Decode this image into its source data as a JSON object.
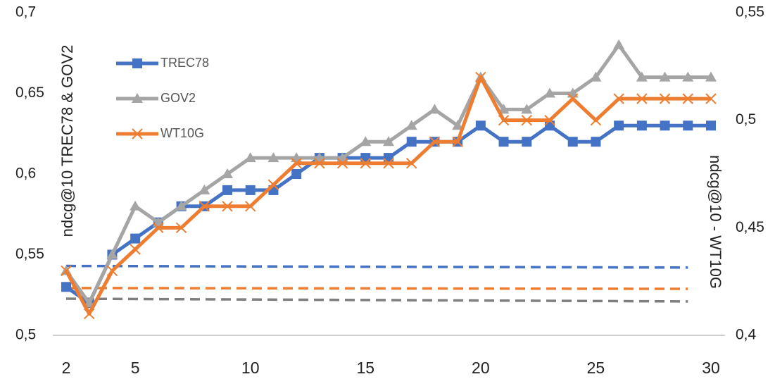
{
  "chart_data": {
    "type": "line",
    "x": [
      2,
      3,
      4,
      5,
      6,
      7,
      8,
      9,
      10,
      11,
      12,
      13,
      14,
      15,
      16,
      17,
      18,
      19,
      20,
      21,
      22,
      23,
      24,
      25,
      26,
      27,
      28,
      29,
      30
    ],
    "xlim": [
      2,
      30
    ],
    "xticks": [
      2,
      5,
      10,
      15,
      20,
      25,
      30
    ],
    "ylim": [
      0.5,
      0.7
    ],
    "yticks": [
      {
        "value": 0.5,
        "label": "0,5"
      },
      {
        "value": 0.55,
        "label": "0,55"
      },
      {
        "value": 0.6,
        "label": "0,6"
      },
      {
        "value": 0.65,
        "label": "0,65"
      },
      {
        "value": 0.7,
        "label": "0,7"
      }
    ],
    "y2lim": [
      0.4,
      0.55
    ],
    "y2ticks": [
      {
        "value": 0.4,
        "label": "0,4"
      },
      {
        "value": 0.45,
        "label": "0,45"
      },
      {
        "value": 0.5,
        "label": "0,5"
      },
      {
        "value": 0.55,
        "label": "0,55"
      }
    ],
    "ylabel": "ndcg@10 TREC78 & GOV2",
    "y2label": "ndcg@10 - WT10G",
    "legend": "upper-left",
    "grid": false,
    "series": [
      {
        "name": "TREC78",
        "color": "#4472c4",
        "marker": "square",
        "values": [
          0.53,
          0.52,
          0.55,
          0.56,
          0.57,
          0.58,
          0.58,
          0.59,
          0.59,
          0.59,
          0.6,
          0.61,
          0.61,
          0.61,
          0.61,
          0.62,
          0.62,
          0.62,
          0.63,
          0.62,
          0.62,
          0.63,
          0.62,
          0.62,
          0.63,
          0.63,
          0.63,
          0.63,
          0.63
        ]
      },
      {
        "name": "GOV2",
        "color": "#a5a5a5",
        "marker": "triangle",
        "values": [
          0.54,
          0.52,
          0.55,
          0.58,
          0.57,
          0.58,
          0.59,
          0.6,
          0.61,
          0.61,
          0.61,
          0.61,
          0.61,
          0.62,
          0.62,
          0.63,
          0.64,
          0.63,
          0.66,
          0.64,
          0.64,
          0.65,
          0.65,
          0.66,
          0.68,
          0.66,
          0.66,
          0.66,
          0.66
        ]
      },
      {
        "name": "WT10G",
        "color": "#ed7d31",
        "marker": "x",
        "axis": "y2",
        "values": [
          0.43,
          0.41,
          0.43,
          0.44,
          0.45,
          0.45,
          0.46,
          0.46,
          0.46,
          0.47,
          0.48,
          0.48,
          0.48,
          0.48,
          0.48,
          0.48,
          0.49,
          0.49,
          0.52,
          0.5,
          0.5,
          0.5,
          0.51,
          0.5,
          0.51,
          0.51,
          0.51,
          0.51,
          0.51
        ]
      }
    ],
    "baselines": [
      {
        "color": "#4472c4",
        "x": [
          2,
          29
        ],
        "values": [
          0.543,
          0.542
        ]
      },
      {
        "color": "#ed7d31",
        "axis": "y2",
        "x": [
          2,
          29
        ],
        "values": [
          0.422,
          0.4216
        ]
      },
      {
        "color": "#7f7f7f",
        "x": [
          2,
          29
        ],
        "values": [
          0.5227,
          0.521
        ]
      }
    ]
  }
}
